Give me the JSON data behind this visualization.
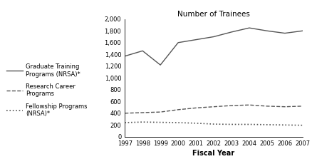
{
  "years": [
    1997,
    1998,
    1999,
    2000,
    2001,
    2002,
    2003,
    2004,
    2005,
    2006,
    2007
  ],
  "graduate_training": [
    1370,
    1460,
    1220,
    1600,
    1650,
    1700,
    1780,
    1850,
    1800,
    1760,
    1800
  ],
  "research_career": [
    400,
    410,
    420,
    460,
    490,
    510,
    530,
    540,
    520,
    510,
    520
  ],
  "fellowship_programs": [
    240,
    250,
    245,
    240,
    230,
    215,
    210,
    210,
    205,
    200,
    195
  ],
  "title": "Number of Trainees",
  "xlabel": "Fiscal Year",
  "ylim": [
    0,
    2000
  ],
  "yticks": [
    0,
    200,
    400,
    600,
    800,
    1000,
    1200,
    1400,
    1600,
    1800,
    2000
  ],
  "legend_labels": [
    "Graduate Training\nPrograms (NRSA)*",
    "Research Career\nPrograms",
    "Fellowship Programs\n(NRSA)*"
  ],
  "line_color": "#555555",
  "background_color": "#ffffff"
}
